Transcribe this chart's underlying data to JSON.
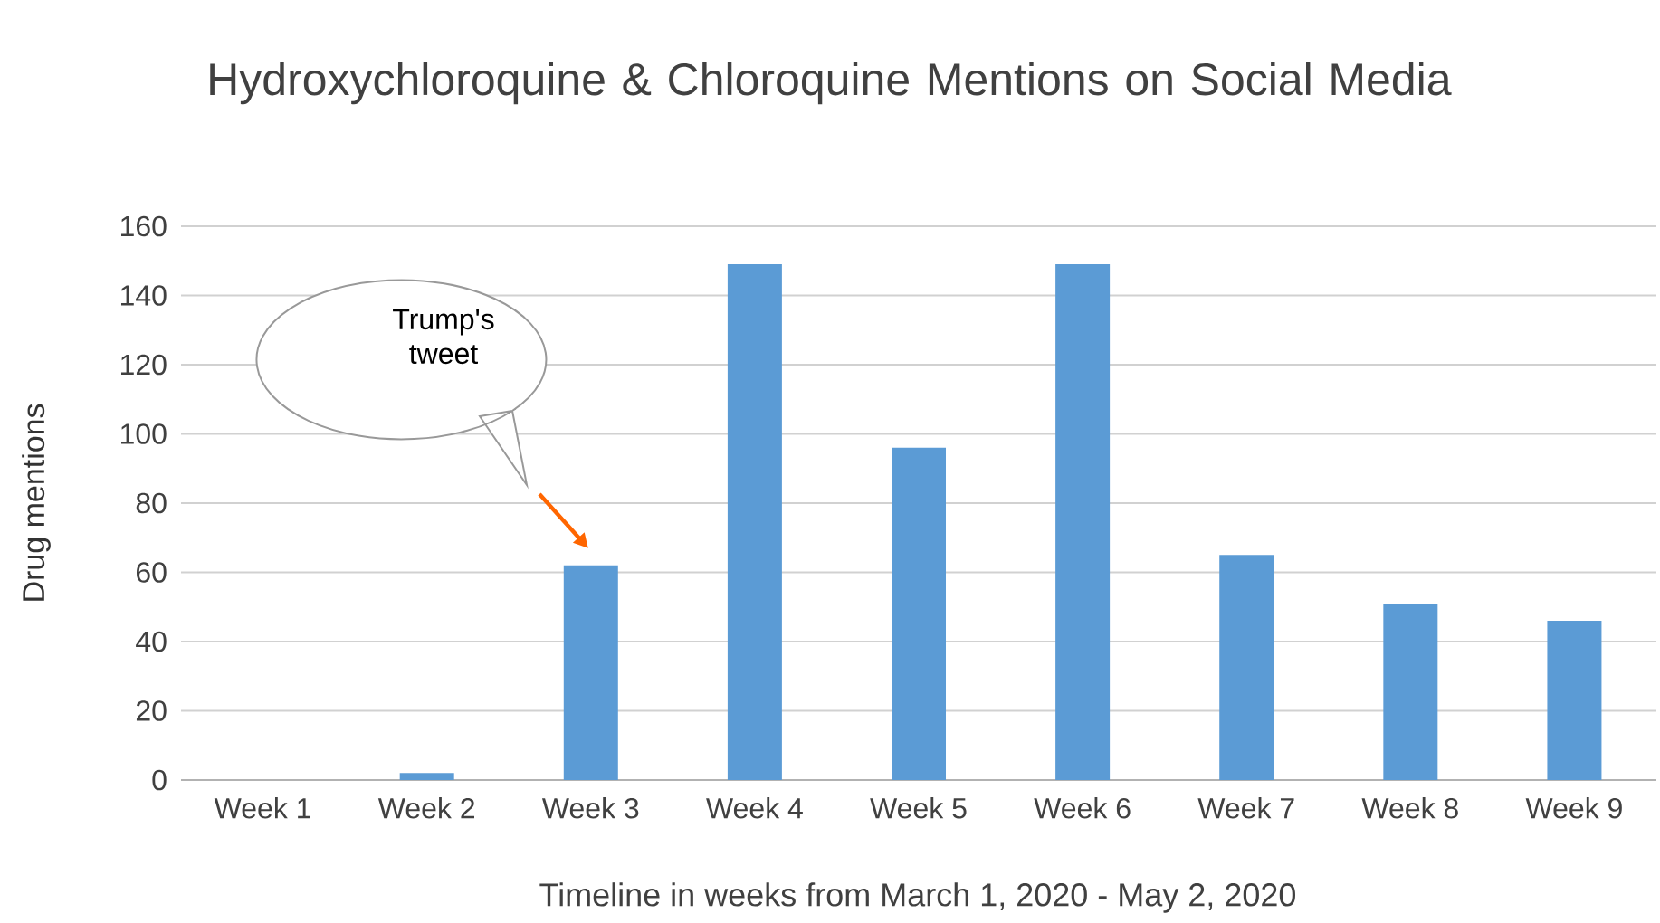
{
  "chart_data": {
    "type": "bar",
    "title": "Hydroxychloroquine & Chloroquine Mentions on Social Media",
    "xlabel": "Timeline in weeks from March 1, 2020 - May 2, 2020",
    "ylabel": "Drug mentions",
    "categories": [
      "Week 1",
      "Week 2",
      "Week 3",
      "Week 4",
      "Week 5",
      "Week 6",
      "Week 7",
      "Week 8",
      "Week 9"
    ],
    "values": [
      0,
      2,
      62,
      149,
      96,
      149,
      65,
      51,
      46
    ],
    "color": "#5b9bd5",
    "ylim": [
      0,
      160
    ],
    "yticks": [
      0,
      20,
      40,
      60,
      80,
      100,
      120,
      140,
      160
    ],
    "grid": "y",
    "annotations": [
      "Trump's tweet"
    ]
  }
}
